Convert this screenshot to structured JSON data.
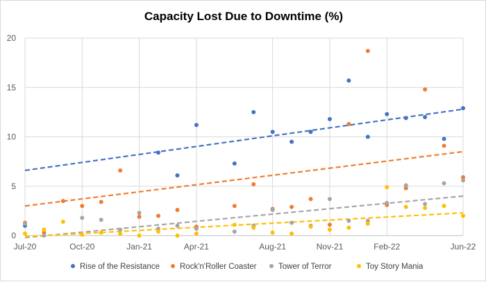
{
  "chart_data": {
    "type": "scatter",
    "title": "Capacity Lost Due to Downtime (%)",
    "xlabel": "",
    "ylabel": "",
    "x_range": [
      "2020-07",
      "2022-06"
    ],
    "x_ticks": [
      {
        "x": "2020-07",
        "label": "Jul-20"
      },
      {
        "x": "2020-10",
        "label": "Oct-20"
      },
      {
        "x": "2021-01",
        "label": "Jan-21"
      },
      {
        "x": "2021-04",
        "label": "Apr-21"
      },
      {
        "x": "2021-08",
        "label": "Aug-21"
      },
      {
        "x": "2021-11",
        "label": "Nov-21"
      },
      {
        "x": "2022-02",
        "label": "Feb-22"
      },
      {
        "x": "2022-06",
        "label": "Jun-22"
      }
    ],
    "ylim": [
      0,
      20
    ],
    "y_ticks": [
      0,
      5,
      10,
      15,
      20
    ],
    "grid": true,
    "legend_position": "bottom",
    "trendline_style": "dashed linear",
    "series": [
      {
        "name": "Rise of the Resistance",
        "color": "#4472c4",
        "trend": [
          6.6,
          12.8
        ],
        "points": [
          {
            "x": "2020-07",
            "y": 1.0
          },
          {
            "x": "2021-02",
            "y": 8.4
          },
          {
            "x": "2021-03",
            "y": 6.1
          },
          {
            "x": "2021-04",
            "y": 11.2
          },
          {
            "x": "2021-06",
            "y": 7.3
          },
          {
            "x": "2021-07",
            "y": 12.5
          },
          {
            "x": "2021-08",
            "y": 10.5
          },
          {
            "x": "2021-09",
            "y": 9.5
          },
          {
            "x": "2021-10",
            "y": 10.5
          },
          {
            "x": "2021-11",
            "y": 11.8
          },
          {
            "x": "2021-12",
            "y": 15.7
          },
          {
            "x": "2022-01",
            "y": 10.0
          },
          {
            "x": "2022-02",
            "y": 12.3
          },
          {
            "x": "2022-03",
            "y": 11.9
          },
          {
            "x": "2022-04",
            "y": 12.0
          },
          {
            "x": "2022-05",
            "y": 9.8
          },
          {
            "x": "2022-06",
            "y": 12.9
          }
        ]
      },
      {
        "name": "Rock'n'Roller Coaster",
        "color": "#ed7d31",
        "trend": [
          3.0,
          8.5
        ],
        "points": [
          {
            "x": "2020-07",
            "y": 1.3
          },
          {
            "x": "2020-08",
            "y": 0.3
          },
          {
            "x": "2020-09",
            "y": 3.5
          },
          {
            "x": "2020-10",
            "y": 3.0
          },
          {
            "x": "2020-11",
            "y": 3.4
          },
          {
            "x": "2020-12",
            "y": 6.6
          },
          {
            "x": "2021-01",
            "y": 1.9
          },
          {
            "x": "2021-02",
            "y": 2.0
          },
          {
            "x": "2021-03",
            "y": 2.6
          },
          {
            "x": "2021-04",
            "y": 0.9
          },
          {
            "x": "2021-06",
            "y": 3.0
          },
          {
            "x": "2021-07",
            "y": 5.2
          },
          {
            "x": "2021-08",
            "y": 2.7
          },
          {
            "x": "2021-09",
            "y": 2.9
          },
          {
            "x": "2021-10",
            "y": 3.7
          },
          {
            "x": "2021-11",
            "y": 1.1
          },
          {
            "x": "2021-12",
            "y": 11.3
          },
          {
            "x": "2022-01",
            "y": 18.7
          },
          {
            "x": "2022-02",
            "y": 3.1
          },
          {
            "x": "2022-03",
            "y": 4.8
          },
          {
            "x": "2022-04",
            "y": 14.8
          },
          {
            "x": "2022-05",
            "y": 9.1
          },
          {
            "x": "2022-06",
            "y": 5.9
          }
        ]
      },
      {
        "name": "Tower of Terror",
        "color": "#a5a5a5",
        "trend": [
          -0.2,
          4.0
        ],
        "points": [
          {
            "x": "2020-07",
            "y": 1.2
          },
          {
            "x": "2020-08",
            "y": 0.0
          },
          {
            "x": "2020-10",
            "y": 1.8
          },
          {
            "x": "2020-11",
            "y": 1.6
          },
          {
            "x": "2020-12",
            "y": 0.6
          },
          {
            "x": "2021-01",
            "y": 2.3
          },
          {
            "x": "2021-02",
            "y": 0.7
          },
          {
            "x": "2021-03",
            "y": 1.0
          },
          {
            "x": "2021-04",
            "y": 0.7
          },
          {
            "x": "2021-06",
            "y": 0.4
          },
          {
            "x": "2021-07",
            "y": 1.0
          },
          {
            "x": "2021-08",
            "y": 2.6
          },
          {
            "x": "2021-09",
            "y": 1.3
          },
          {
            "x": "2021-10",
            "y": 1.0
          },
          {
            "x": "2021-11",
            "y": 3.7
          },
          {
            "x": "2021-12",
            "y": 1.5
          },
          {
            "x": "2022-01",
            "y": 1.5
          },
          {
            "x": "2022-02",
            "y": 3.3
          },
          {
            "x": "2022-03",
            "y": 5.1
          },
          {
            "x": "2022-04",
            "y": 3.2
          },
          {
            "x": "2022-05",
            "y": 5.3
          },
          {
            "x": "2022-06",
            "y": 5.6
          }
        ]
      },
      {
        "name": "Toy Story Mania",
        "color": "#ffc000",
        "trend": [
          -0.1,
          2.3
        ],
        "points": [
          {
            "x": "2020-07",
            "y": 0.2
          },
          {
            "x": "2020-08",
            "y": 0.6
          },
          {
            "x": "2020-09",
            "y": 1.4
          },
          {
            "x": "2020-10",
            "y": 0.1
          },
          {
            "x": "2020-11",
            "y": 0.3
          },
          {
            "x": "2020-12",
            "y": 0.2
          },
          {
            "x": "2021-01",
            "y": 0.0
          },
          {
            "x": "2021-02",
            "y": 0.4
          },
          {
            "x": "2021-03",
            "y": 0.0
          },
          {
            "x": "2021-04",
            "y": 0.2
          },
          {
            "x": "2021-06",
            "y": 1.1
          },
          {
            "x": "2021-07",
            "y": 0.8
          },
          {
            "x": "2021-08",
            "y": 0.3
          },
          {
            "x": "2021-09",
            "y": 0.2
          },
          {
            "x": "2021-10",
            "y": 0.9
          },
          {
            "x": "2021-11",
            "y": 0.6
          },
          {
            "x": "2021-12",
            "y": 0.8
          },
          {
            "x": "2022-01",
            "y": 1.2
          },
          {
            "x": "2022-02",
            "y": 4.9
          },
          {
            "x": "2022-03",
            "y": 2.9
          },
          {
            "x": "2022-04",
            "y": 2.8
          },
          {
            "x": "2022-05",
            "y": 3.0
          },
          {
            "x": "2022-06",
            "y": 2.0
          }
        ]
      }
    ]
  }
}
